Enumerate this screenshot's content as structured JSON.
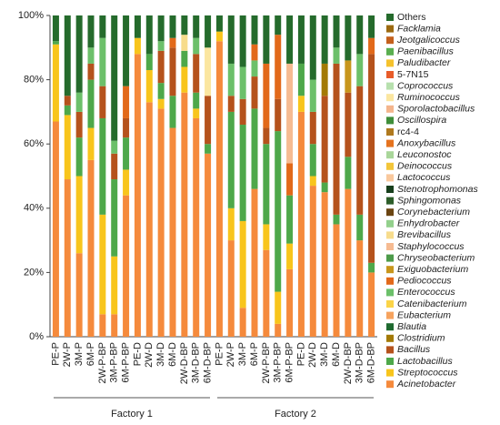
{
  "chart_data": {
    "type": "stacked_bar",
    "categories": [
      "PE-P",
      "2W-P",
      "3M-P",
      "6M-P",
      "2W-P-BP",
      "3M-P-BP",
      "6M-P-BP",
      "PE-D",
      "2W-D",
      "3M-D",
      "6M-D",
      "2W-D-BP",
      "3M-D-BP",
      "6M-D-BP",
      "PE-P",
      "2W-P",
      "3M-P",
      "6M-P",
      "2W-P-BP",
      "3M-P-BP",
      "6M-P-BP",
      "PE-D",
      "2W-D",
      "3M-D",
      "6M-D",
      "2W-D-BP",
      "3M-D-BP",
      "6M-D-BP"
    ],
    "groups": [
      "Factory 1",
      "Factory 2"
    ],
    "ylim": [
      0,
      100
    ],
    "yticks": [
      {
        "value": 0,
        "label": "0%"
      },
      {
        "value": 20,
        "label": "20%"
      },
      {
        "value": 40,
        "label": "40%"
      },
      {
        "value": 60,
        "label": "60%"
      },
      {
        "value": 80,
        "label": "80%"
      },
      {
        "value": 100,
        "label": "100%"
      }
    ],
    "legend": "right",
    "series": [
      {
        "name": "Acinetobacter",
        "color": "#f58a3c",
        "values": [
          67,
          49,
          26,
          55,
          7,
          7,
          44,
          88,
          73,
          71,
          65,
          76,
          68,
          57,
          92,
          30,
          9,
          46,
          27,
          4,
          21,
          70,
          47,
          45,
          35,
          46,
          30,
          20
        ]
      },
      {
        "name": "Streptococcus",
        "color": "#f8c51c",
        "values": [
          24,
          20,
          24,
          10,
          31,
          18,
          8,
          5,
          10,
          3,
          0,
          8,
          3,
          0,
          3,
          10,
          27,
          0,
          8,
          10,
          8,
          5,
          3,
          0,
          0,
          0,
          0,
          0
        ]
      },
      {
        "name": "Lactobacillus",
        "color": "#4ea84a",
        "values": [
          1,
          3,
          12,
          15,
          30,
          24,
          10,
          0,
          5,
          5,
          10,
          5,
          5,
          3,
          0,
          30,
          30,
          25,
          25,
          50,
          15,
          10,
          10,
          3,
          3,
          10,
          8,
          3
        ]
      },
      {
        "name": "Bacillus",
        "color": "#b5521c",
        "values": [
          0,
          3,
          8,
          5,
          10,
          8,
          6,
          0,
          0,
          10,
          15,
          0,
          12,
          15,
          0,
          5,
          8,
          10,
          5,
          10,
          0,
          0,
          10,
          27,
          47,
          20,
          40,
          65
        ]
      },
      {
        "name": "Clostridium",
        "color": "#a37a06",
        "values": [
          0,
          0,
          0,
          0,
          0,
          0,
          0,
          0,
          0,
          0,
          0,
          0,
          0,
          0,
          0,
          0,
          0,
          0,
          0,
          0,
          0,
          0,
          0,
          10,
          0,
          0,
          0,
          0
        ]
      },
      {
        "name": "Blautia",
        "color": "#1f6a30",
        "values": [
          0,
          0,
          0,
          0,
          0,
          0,
          0,
          0,
          0,
          0,
          0,
          0,
          0,
          0,
          0,
          0,
          0,
          0,
          0,
          0,
          0,
          0,
          0,
          0,
          0,
          0,
          0,
          0
        ]
      },
      {
        "name": "Eubacterium",
        "color": "#f6a35e",
        "values": [
          0,
          0,
          0,
          0,
          0,
          0,
          0,
          0,
          0,
          0,
          0,
          0,
          0,
          0,
          0,
          0,
          0,
          0,
          0,
          0,
          0,
          0,
          0,
          0,
          0,
          0,
          0,
          0
        ]
      },
      {
        "name": "Catenibacterium",
        "color": "#fbd448",
        "values": [
          0,
          0,
          0,
          0,
          0,
          0,
          0,
          0,
          0,
          0,
          0,
          0,
          0,
          0,
          0,
          0,
          0,
          0,
          0,
          0,
          0,
          0,
          0,
          0,
          0,
          0,
          0,
          0
        ]
      },
      {
        "name": "Enterococcus",
        "color": "#6cc06a",
        "values": [
          0,
          0,
          6,
          5,
          15,
          4,
          0,
          0,
          0,
          3,
          0,
          0,
          5,
          0,
          0,
          10,
          10,
          5,
          0,
          0,
          0,
          0,
          10,
          0,
          5,
          0,
          10,
          0
        ]
      },
      {
        "name": "Pediococcus",
        "color": "#e2691a",
        "values": [
          0,
          0,
          0,
          0,
          0,
          0,
          10,
          0,
          0,
          0,
          3,
          0,
          0,
          0,
          0,
          0,
          0,
          5,
          20,
          20,
          10,
          0,
          0,
          0,
          0,
          0,
          0,
          5
        ]
      },
      {
        "name": "Exiguobacterium",
        "color": "#c8961c",
        "values": [
          0,
          0,
          0,
          0,
          0,
          0,
          0,
          0,
          0,
          0,
          0,
          0,
          0,
          0,
          0,
          0,
          0,
          0,
          0,
          0,
          0,
          0,
          0,
          0,
          0,
          10,
          0,
          0
        ]
      },
      {
        "name": "Chryseobacterium",
        "color": "#4d9b4a",
        "values": [
          0,
          0,
          0,
          0,
          0,
          0,
          0,
          0,
          0,
          0,
          0,
          0,
          0,
          0,
          0,
          0,
          0,
          0,
          0,
          0,
          0,
          0,
          0,
          0,
          0,
          0,
          0,
          0
        ]
      },
      {
        "name": "Staphylococcus",
        "color": "#f6bb92",
        "values": [
          0,
          0,
          0,
          0,
          0,
          0,
          0,
          0,
          0,
          0,
          0,
          0,
          0,
          0,
          0,
          0,
          0,
          0,
          0,
          0,
          31,
          0,
          0,
          0,
          0,
          0,
          0,
          0
        ]
      },
      {
        "name": "Brevibacillus",
        "color": "#f7dc8c",
        "values": [
          0,
          0,
          0,
          0,
          0,
          0,
          0,
          0,
          0,
          0,
          0,
          5,
          0,
          0,
          0,
          0,
          0,
          0,
          0,
          0,
          0,
          0,
          0,
          0,
          0,
          0,
          0,
          0
        ]
      },
      {
        "name": "Enhydrobacter",
        "color": "#93d08c",
        "values": [
          0,
          0,
          0,
          0,
          0,
          0,
          0,
          0,
          0,
          0,
          0,
          0,
          0,
          0,
          0,
          0,
          0,
          0,
          0,
          0,
          0,
          0,
          0,
          0,
          0,
          0,
          0,
          0
        ]
      },
      {
        "name": "Corynebacterium",
        "color": "#6b4512",
        "values": [
          0,
          0,
          0,
          0,
          0,
          0,
          0,
          0,
          0,
          0,
          0,
          0,
          0,
          0,
          0,
          0,
          0,
          0,
          0,
          0,
          0,
          0,
          0,
          0,
          0,
          0,
          0,
          0
        ]
      },
      {
        "name": "Sphingomonas",
        "color": "#2d5e2a",
        "values": [
          0,
          0,
          0,
          0,
          0,
          0,
          0,
          0,
          0,
          0,
          0,
          0,
          0,
          0,
          0,
          0,
          0,
          0,
          0,
          0,
          0,
          0,
          0,
          0,
          0,
          0,
          0,
          0
        ]
      },
      {
        "name": "Stenotrophomonas",
        "color": "#173f1c",
        "values": [
          0,
          0,
          0,
          0,
          0,
          0,
          0,
          0,
          0,
          0,
          0,
          0,
          0,
          0,
          0,
          0,
          0,
          0,
          0,
          0,
          0,
          0,
          0,
          0,
          0,
          0,
          0,
          0
        ]
      },
      {
        "name": "Lactococcus",
        "color": "#f9c89c",
        "values": [
          0,
          0,
          0,
          0,
          0,
          0,
          0,
          0,
          0,
          0,
          0,
          0,
          0,
          0,
          0,
          0,
          0,
          0,
          0,
          0,
          0,
          0,
          0,
          0,
          0,
          0,
          0,
          0
        ]
      },
      {
        "name": "Deinococcus",
        "color": "#f3c63a",
        "values": [
          0,
          0,
          0,
          0,
          0,
          0,
          0,
          0,
          0,
          0,
          0,
          0,
          0,
          0,
          0,
          0,
          0,
          0,
          0,
          0,
          0,
          0,
          0,
          0,
          0,
          0,
          0,
          0
        ]
      },
      {
        "name": "Leuconostoc",
        "color": "#a9d69a",
        "values": [
          0,
          0,
          0,
          0,
          0,
          0,
          0,
          0,
          0,
          0,
          0,
          0,
          0,
          0,
          0,
          0,
          0,
          0,
          0,
          0,
          0,
          0,
          0,
          0,
          0,
          0,
          0,
          0
        ]
      },
      {
        "name": "Anoxybacillus",
        "color": "#e5731f",
        "values": [
          0,
          0,
          0,
          0,
          0,
          0,
          0,
          0,
          0,
          0,
          0,
          0,
          0,
          0,
          0,
          0,
          0,
          0,
          0,
          0,
          0,
          0,
          0,
          0,
          0,
          0,
          0,
          0
        ]
      },
      {
        "name": "rc4-4",
        "color": "#b0791e",
        "italic": false,
        "values": [
          0,
          0,
          0,
          0,
          0,
          0,
          0,
          0,
          0,
          0,
          0,
          0,
          0,
          0,
          0,
          0,
          0,
          0,
          0,
          0,
          0,
          0,
          0,
          0,
          0,
          0,
          0,
          0
        ]
      },
      {
        "name": "Oscillospira",
        "color": "#3f8e3a",
        "values": [
          0,
          0,
          0,
          0,
          0,
          0,
          0,
          0,
          0,
          0,
          0,
          0,
          0,
          0,
          0,
          0,
          0,
          0,
          0,
          0,
          0,
          0,
          0,
          0,
          0,
          0,
          0,
          0
        ]
      },
      {
        "name": "Sporolactobacillus",
        "color": "#f4b58c",
        "values": [
          0,
          0,
          0,
          0,
          0,
          0,
          0,
          0,
          0,
          0,
          0,
          0,
          0,
          0,
          0,
          0,
          0,
          0,
          0,
          0,
          0,
          0,
          0,
          0,
          0,
          0,
          0,
          0
        ]
      },
      {
        "name": "Ruminococcus",
        "color": "#fbe6a0",
        "values": [
          0,
          0,
          0,
          0,
          0,
          0,
          0,
          0,
          0,
          0,
          0,
          0,
          0,
          15,
          0,
          0,
          0,
          0,
          0,
          0,
          0,
          0,
          0,
          0,
          0,
          0,
          0,
          0
        ]
      },
      {
        "name": "Coprococcus",
        "color": "#b7e0ae",
        "values": [
          0,
          0,
          0,
          0,
          0,
          0,
          0,
          0,
          0,
          0,
          0,
          0,
          0,
          0,
          0,
          0,
          0,
          0,
          0,
          0,
          0,
          0,
          0,
          0,
          0,
          0,
          0,
          0
        ]
      },
      {
        "name": "5-7N15",
        "color": "#e85c2a",
        "italic": false,
        "values": [
          0,
          0,
          0,
          0,
          0,
          0,
          0,
          0,
          0,
          0,
          0,
          0,
          0,
          0,
          0,
          0,
          0,
          0,
          0,
          0,
          0,
          0,
          0,
          0,
          0,
          0,
          0,
          0
        ]
      },
      {
        "name": "Paludibacter",
        "color": "#f5c22c",
        "values": [
          0,
          0,
          0,
          0,
          0,
          0,
          0,
          0,
          0,
          0,
          0,
          0,
          0,
          0,
          0,
          0,
          0,
          0,
          0,
          0,
          0,
          0,
          0,
          0,
          0,
          0,
          0,
          0
        ]
      },
      {
        "name": "Paenibacillus",
        "color": "#5aaf50",
        "values": [
          0,
          0,
          0,
          0,
          0,
          0,
          0,
          0,
          0,
          0,
          0,
          0,
          0,
          0,
          0,
          0,
          0,
          0,
          0,
          0,
          0,
          0,
          0,
          0,
          0,
          0,
          0,
          0
        ]
      },
      {
        "name": "Jeotgalicoccus",
        "color": "#c4601c",
        "values": [
          0,
          0,
          0,
          0,
          0,
          0,
          0,
          0,
          0,
          0,
          0,
          0,
          0,
          0,
          0,
          0,
          0,
          0,
          0,
          0,
          0,
          0,
          0,
          0,
          0,
          0,
          0,
          0
        ]
      },
      {
        "name": "Facklamia",
        "color": "#9c6a10",
        "values": [
          0,
          0,
          0,
          0,
          0,
          0,
          0,
          0,
          0,
          0,
          0,
          0,
          0,
          0,
          0,
          0,
          0,
          0,
          0,
          0,
          0,
          0,
          0,
          0,
          0,
          0,
          0,
          0
        ]
      },
      {
        "name": "Others",
        "color": "#256b2c",
        "italic": false,
        "values": [
          8,
          25,
          24,
          10,
          7,
          39,
          22,
          7,
          12,
          8,
          7,
          6,
          7,
          10,
          5,
          15,
          16,
          9,
          15,
          6,
          15,
          15,
          20,
          15,
          10,
          14,
          12,
          7
        ]
      }
    ]
  }
}
